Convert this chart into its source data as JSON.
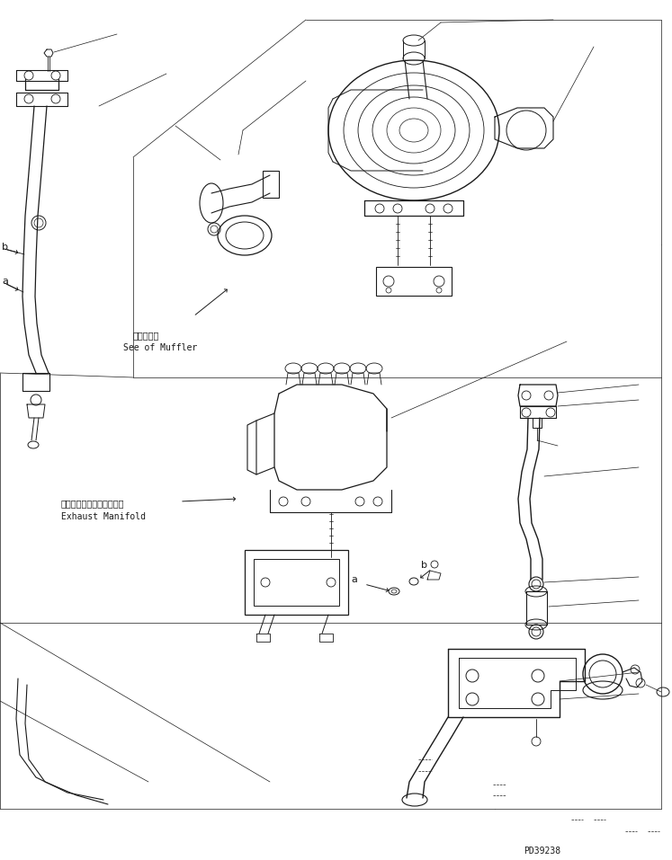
{
  "bg_color": "#ffffff",
  "lc": "#1a1a1a",
  "lw": 0.7,
  "fig_w": 7.47,
  "fig_h": 9.57,
  "dpi": 100,
  "part_number": "PD39238",
  "muffler_jp": "マフラ参照",
  "muffler_en": "See of Muffler",
  "exhaust_jp": "エキゾーストマニホールド",
  "exhaust_en": "Exhaust Manifold"
}
